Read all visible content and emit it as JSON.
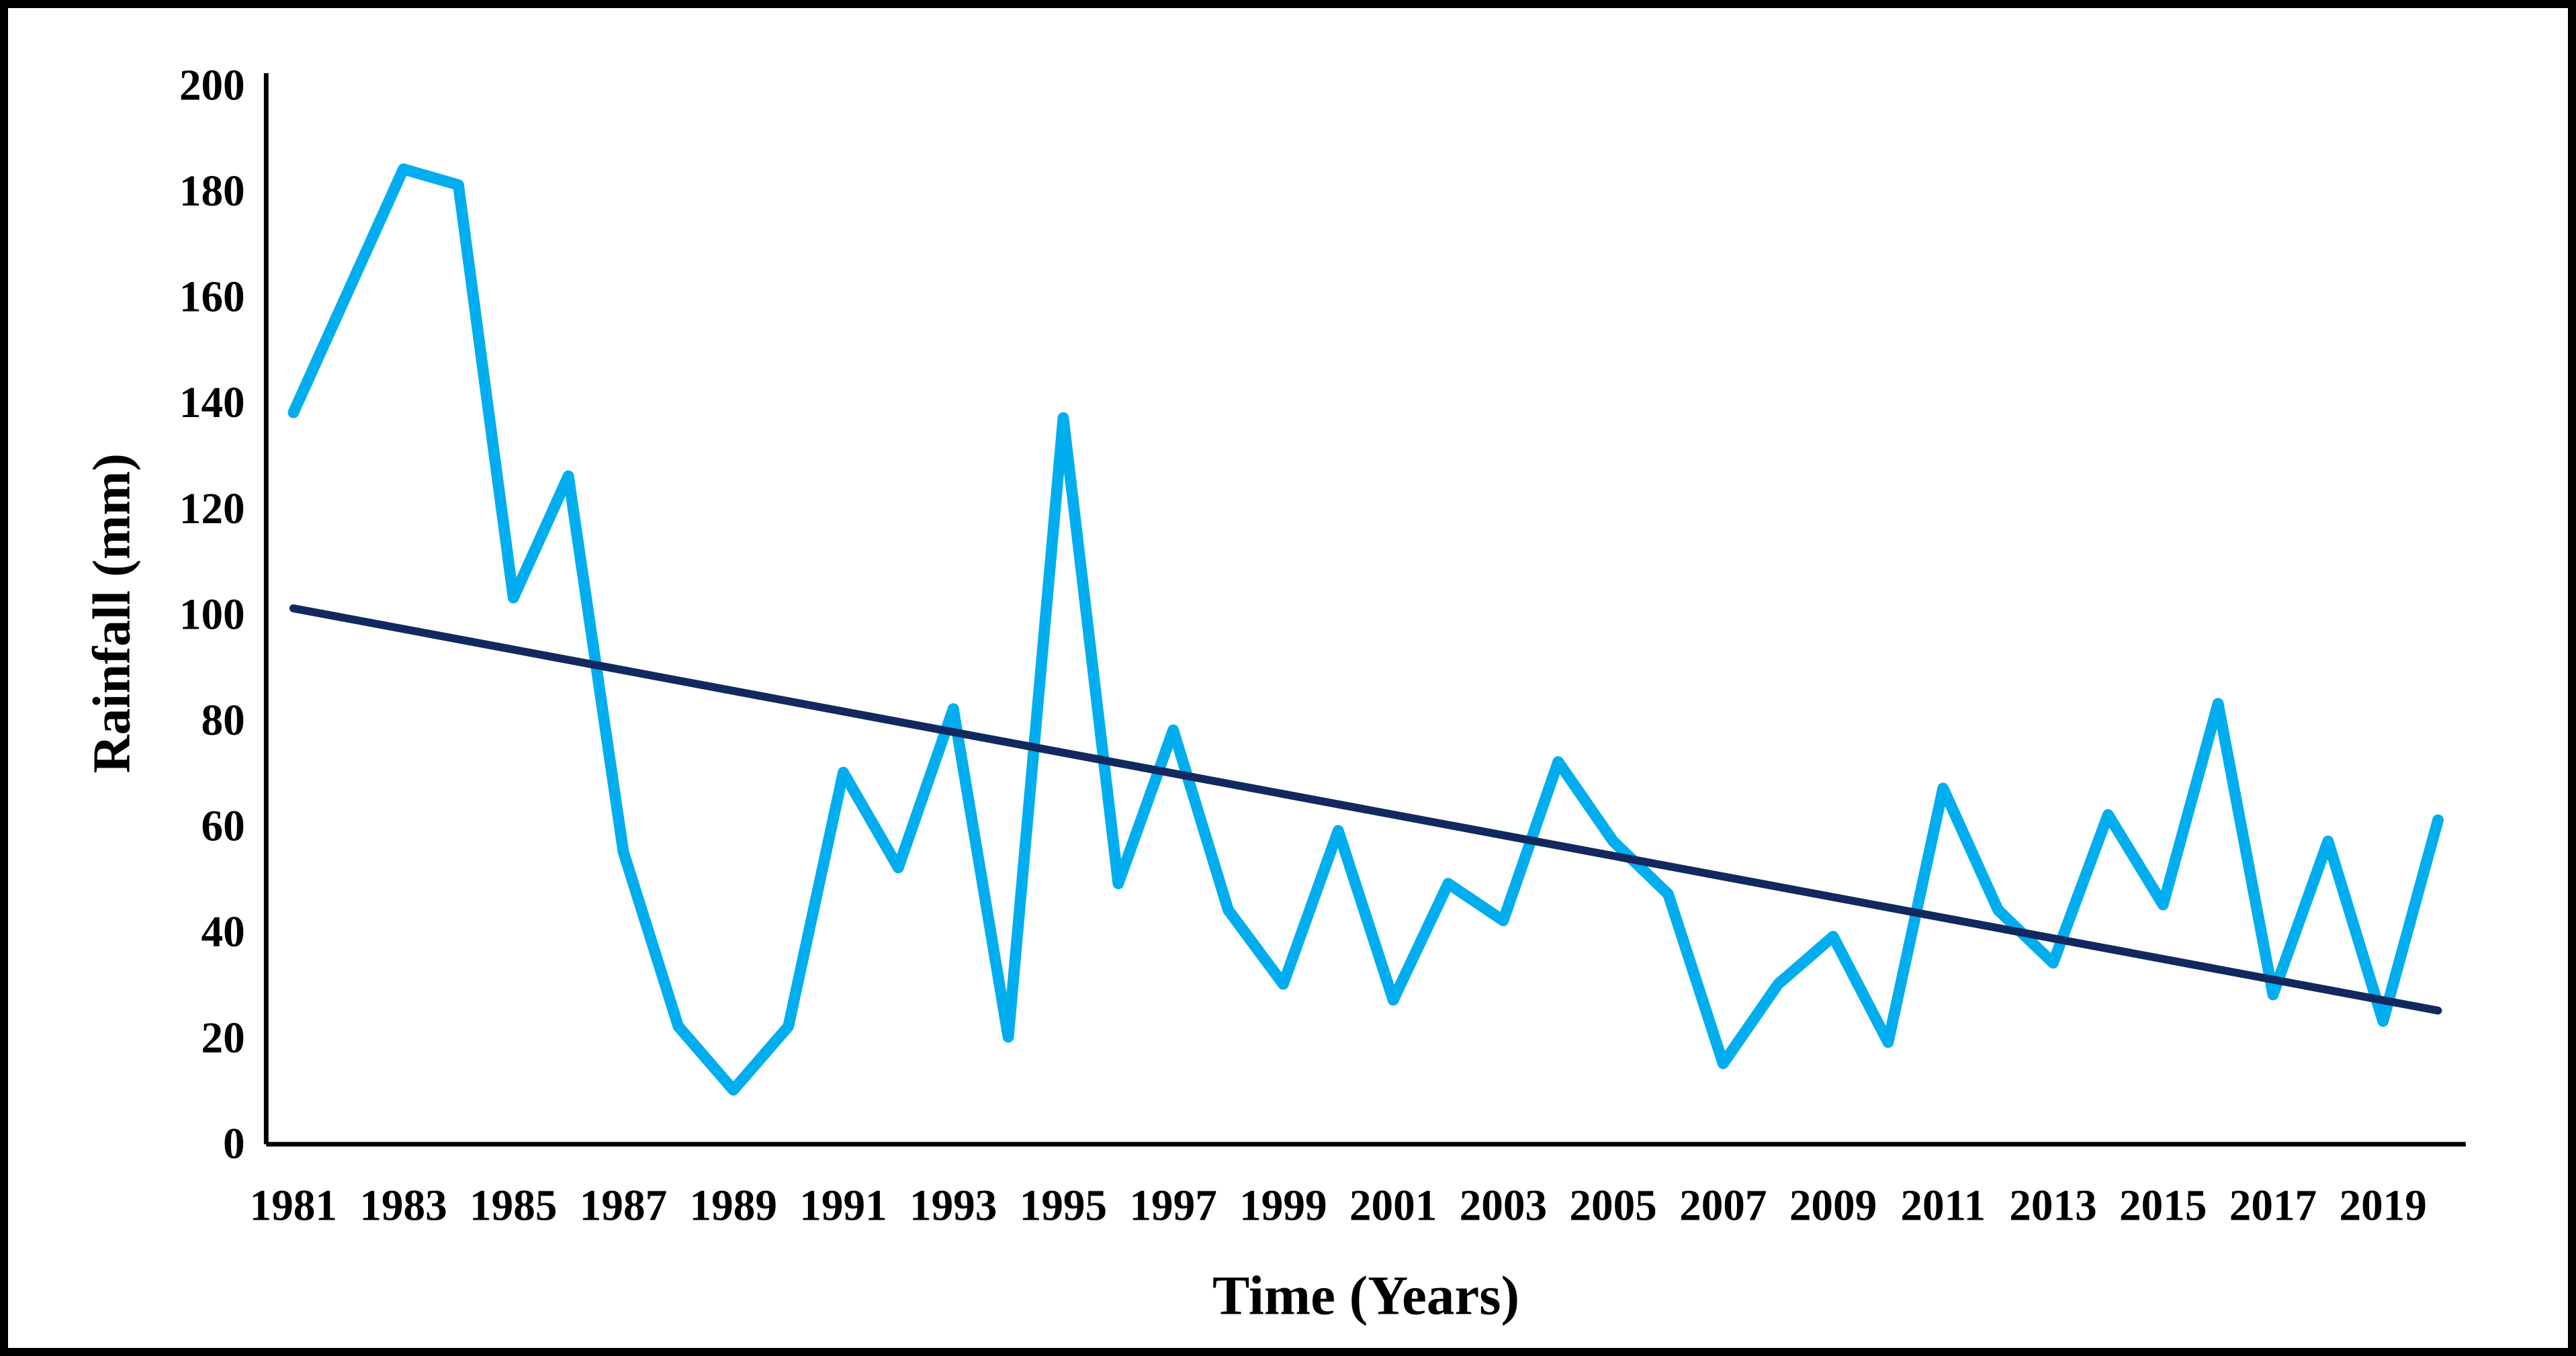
{
  "figure": {
    "background": "#ffffff",
    "border_color": "#000000"
  },
  "chart_data": {
    "type": "line",
    "title": "",
    "xlabel": "Time (Years)",
    "ylabel": "Rainfall (mm)",
    "x": [
      1981,
      1982,
      1983,
      1984,
      1985,
      1986,
      1987,
      1988,
      1989,
      1990,
      1991,
      1992,
      1993,
      1994,
      1995,
      1996,
      1997,
      1998,
      1999,
      2000,
      2001,
      2002,
      2003,
      2004,
      2005,
      2006,
      2007,
      2008,
      2009,
      2010,
      2011,
      2012,
      2013,
      2014,
      2015,
      2016,
      2017,
      2018,
      2019,
      2020
    ],
    "series": [
      {
        "name": "annual-rainfall",
        "color": "#00AEEF",
        "values": [
          138,
          161,
          184,
          181,
          103,
          126,
          55,
          22,
          10,
          22,
          70,
          52,
          82,
          20,
          137,
          49,
          78,
          44,
          30,
          59,
          27,
          49,
          42,
          72,
          57,
          47,
          15,
          30,
          39,
          19,
          67,
          44,
          34,
          62,
          45,
          83,
          28,
          57,
          23,
          61
        ]
      },
      {
        "name": "linear-trend",
        "color": "#12295F",
        "start_year": 1981,
        "start_value": 101,
        "end_year": 2020,
        "end_value": 25
      }
    ],
    "x_tick_labels": [
      "1981",
      "1983",
      "1985",
      "1987",
      "1989",
      "1991",
      "1993",
      "1995",
      "1997",
      "1999",
      "2001",
      "2003",
      "2005",
      "2007",
      "2009",
      "2011",
      "2013",
      "2015",
      "2017",
      "2019"
    ],
    "y_ticks": [
      "0",
      "20",
      "40",
      "60",
      "80",
      "100",
      "120",
      "140",
      "160",
      "180",
      "200"
    ],
    "ylim": [
      0,
      200
    ],
    "grid": false,
    "legend": "none"
  }
}
